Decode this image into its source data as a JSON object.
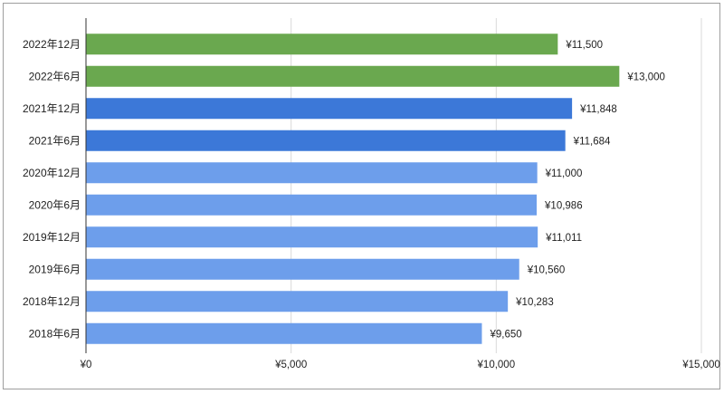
{
  "chart_data": {
    "type": "bar",
    "orientation": "horizontal",
    "categories": [
      "2022年12月",
      "2022年6月",
      "2021年12月",
      "2021年6月",
      "2020年12月",
      "2020年6月",
      "2019年12月",
      "2019年6月",
      "2018年12月",
      "2018年6月"
    ],
    "values": [
      11500,
      13000,
      11848,
      11684,
      11000,
      10986,
      11011,
      10560,
      10283,
      9650
    ],
    "value_labels": [
      "¥11,500",
      "¥13,000",
      "¥11,848",
      "¥11,684",
      "¥11,000",
      "¥10,986",
      "¥11,011",
      "¥10,560",
      "¥10,283",
      "¥9,650"
    ],
    "bar_colors": [
      "#6aa84f",
      "#6aa84f",
      "#3c78d8",
      "#3c78d8",
      "#6d9eeb",
      "#6d9eeb",
      "#6d9eeb",
      "#6d9eeb",
      "#6d9eeb",
      "#6d9eeb"
    ],
    "xlim": [
      0,
      15000
    ],
    "x_ticks": [
      0,
      5000,
      10000,
      15000
    ],
    "x_tick_labels": [
      "¥0",
      "¥5,000",
      "¥10,000",
      "¥15,000"
    ],
    "grid": true,
    "title": "",
    "xlabel": "",
    "ylabel": ""
  }
}
